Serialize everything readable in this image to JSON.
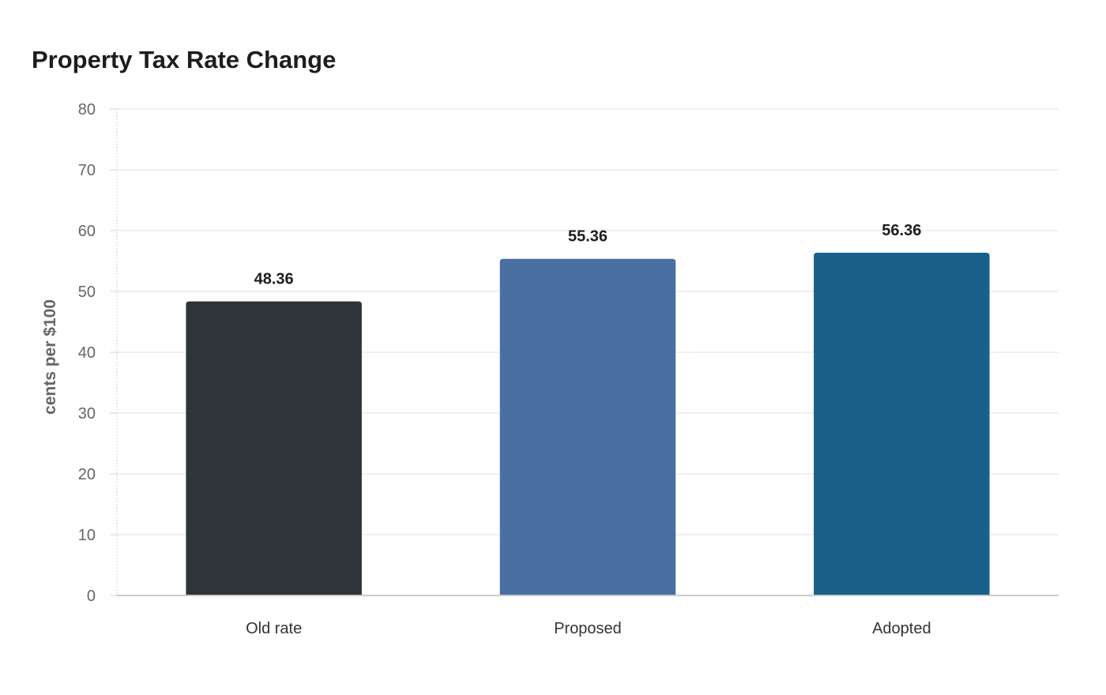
{
  "chart_data": {
    "type": "bar",
    "title": "Property Tax Rate Change",
    "xlabel": "",
    "ylabel": "cents per $100",
    "ylim": [
      0,
      80
    ],
    "yticks": [
      0,
      10,
      20,
      30,
      40,
      50,
      60,
      70,
      80
    ],
    "grid": true,
    "categories": [
      "Old rate",
      "Proposed",
      "Adopted"
    ],
    "values": [
      48.36,
      55.36,
      56.36
    ],
    "data_labels": [
      "48.36",
      "55.36",
      "56.36"
    ],
    "colors": [
      "#2e3538",
      "#4a6fa3",
      "#196189"
    ]
  }
}
